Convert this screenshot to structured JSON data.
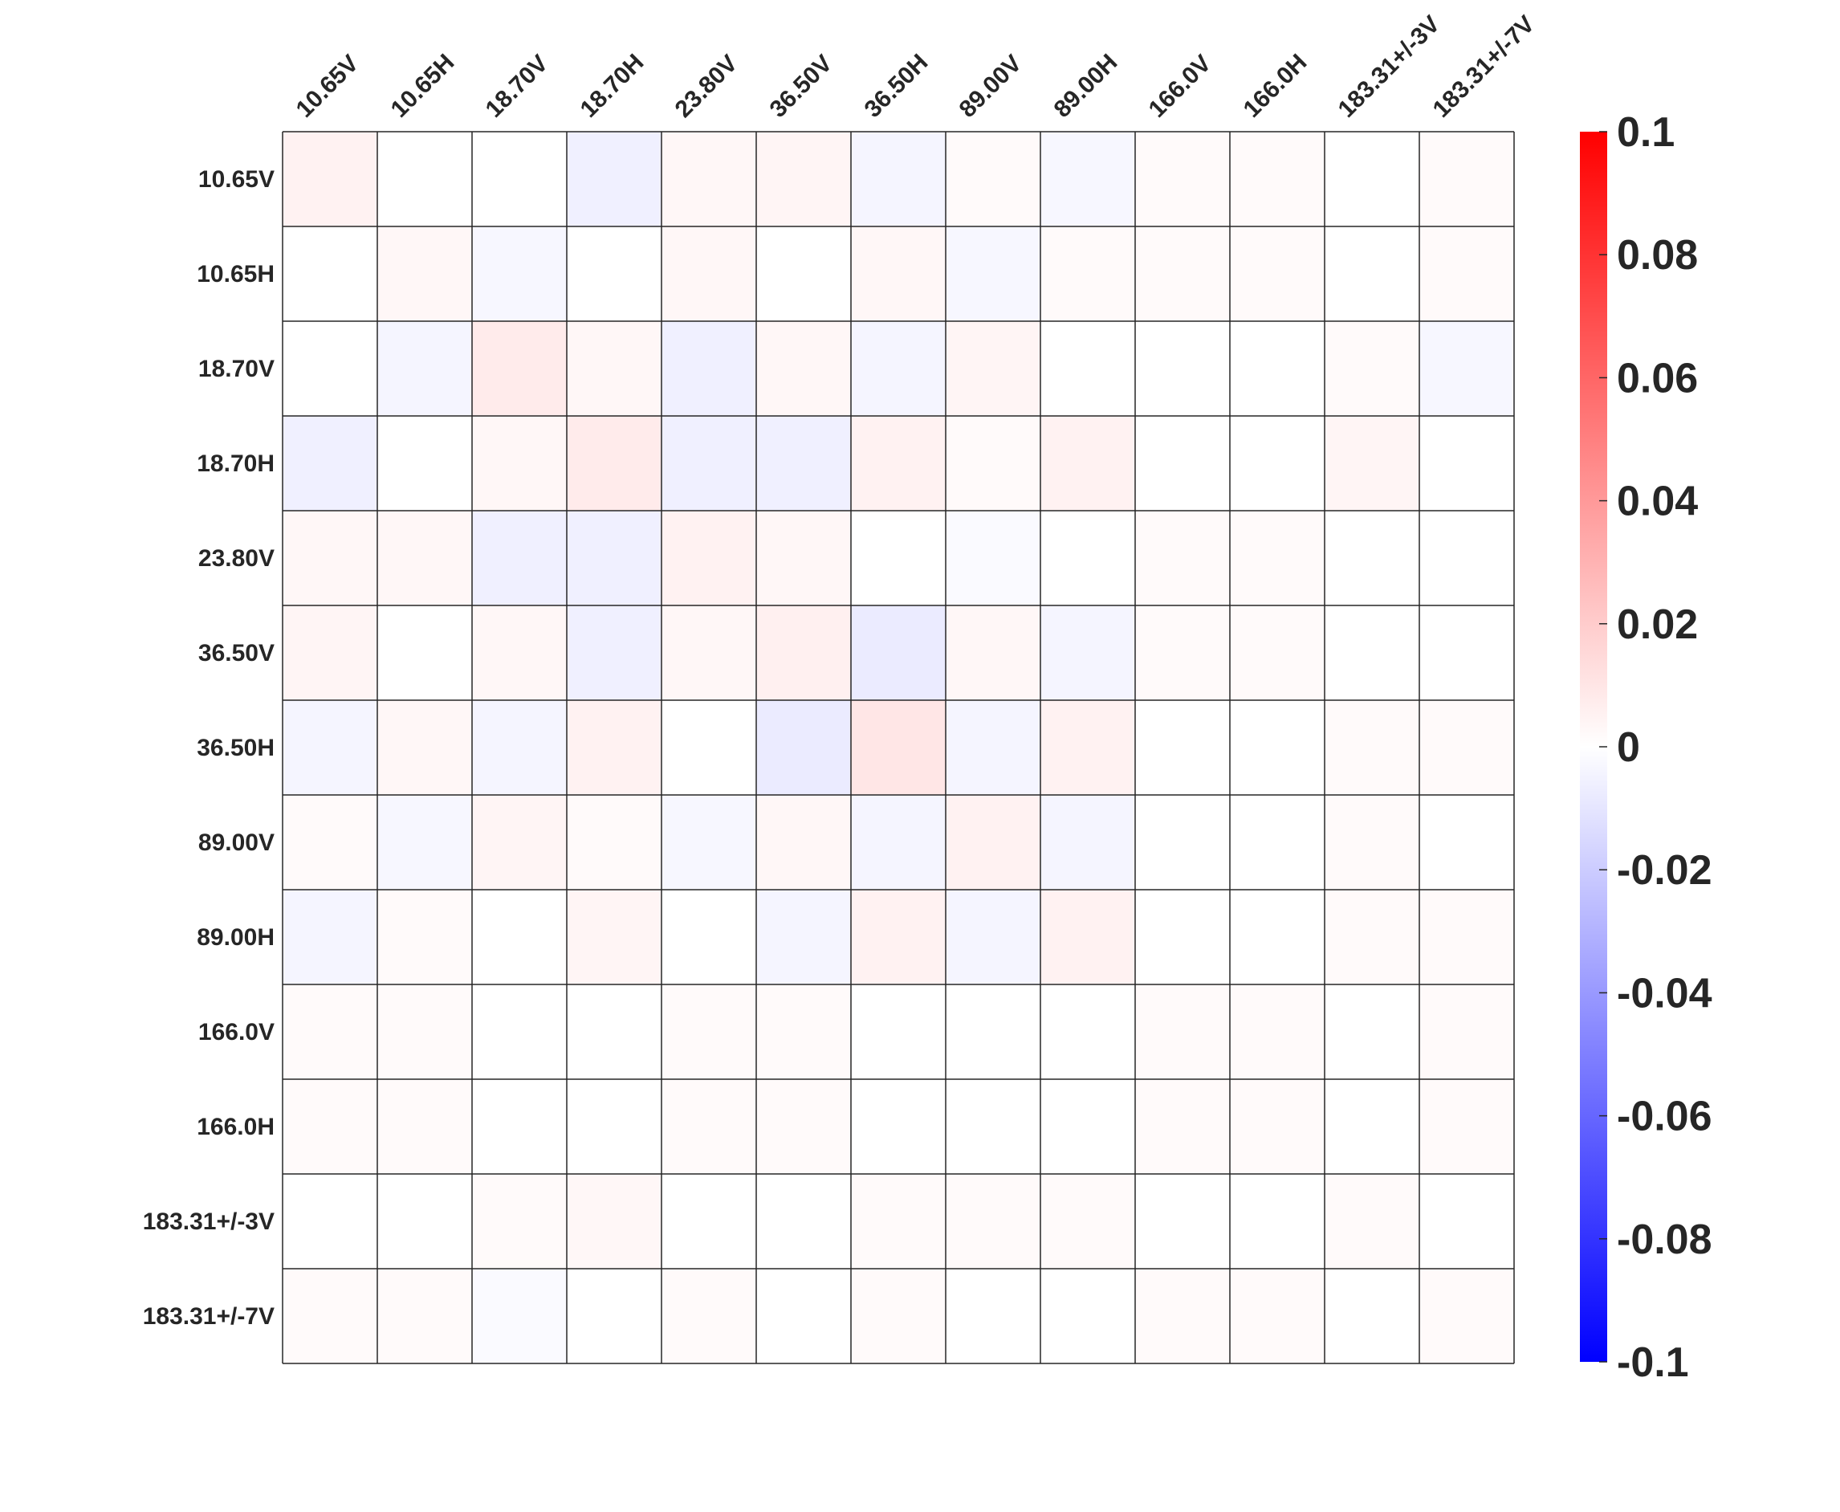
{
  "chart_data": {
    "type": "heatmap",
    "title": "",
    "xlabel": "",
    "ylabel": "",
    "columns": [
      "10.65V",
      "10.65H",
      "18.70V",
      "18.70H",
      "23.80V",
      "36.50V",
      "36.50H",
      "89.00V",
      "89.00H",
      "166.0V",
      "166.0H",
      "183.31+/-3V",
      "183.31+/-7V"
    ],
    "rows": [
      "10.65V",
      "10.65H",
      "18.70V",
      "18.70H",
      "23.80V",
      "36.50V",
      "36.50H",
      "89.00V",
      "89.00H",
      "166.0V",
      "166.0H",
      "183.31+/-3V",
      "183.31+/-7V"
    ],
    "values": [
      [
        0.005,
        0.0,
        0.0,
        -0.006,
        0.003,
        0.004,
        -0.004,
        0.002,
        -0.003,
        0.002,
        0.002,
        0.0,
        0.002
      ],
      [
        0.0,
        0.003,
        -0.003,
        0.0,
        0.003,
        0.0,
        0.003,
        -0.003,
        0.002,
        0.002,
        0.002,
        0.0,
        0.002
      ],
      [
        0.0,
        -0.004,
        0.008,
        0.003,
        -0.006,
        0.003,
        -0.004,
        0.004,
        0.0,
        0.0,
        0.0,
        0.002,
        -0.003
      ],
      [
        -0.006,
        0.0,
        0.003,
        0.008,
        -0.006,
        -0.006,
        0.005,
        0.002,
        0.005,
        0.0,
        0.0,
        0.004,
        0.0
      ],
      [
        0.003,
        0.003,
        -0.006,
        -0.006,
        0.005,
        0.003,
        0.0,
        -0.002,
        0.0,
        0.002,
        0.002,
        0.0,
        0.0
      ],
      [
        0.004,
        0.0,
        0.003,
        -0.006,
        0.003,
        0.006,
        -0.008,
        0.003,
        -0.004,
        0.002,
        0.002,
        0.0,
        0.0
      ],
      [
        -0.004,
        0.003,
        -0.004,
        0.005,
        0.0,
        -0.008,
        0.01,
        -0.004,
        0.005,
        0.0,
        0.0,
        0.002,
        0.002
      ],
      [
        0.002,
        -0.003,
        0.004,
        0.002,
        -0.003,
        0.003,
        -0.004,
        0.005,
        -0.004,
        0.0,
        0.0,
        0.002,
        0.0
      ],
      [
        -0.004,
        0.002,
        0.0,
        0.004,
        0.0,
        -0.004,
        0.005,
        -0.004,
        0.005,
        0.0,
        0.0,
        0.002,
        0.002
      ],
      [
        0.002,
        0.002,
        0.0,
        0.0,
        0.002,
        0.002,
        0.0,
        0.0,
        0.0,
        0.002,
        0.002,
        0.0,
        0.002
      ],
      [
        0.002,
        0.002,
        0.0,
        0.0,
        0.002,
        0.002,
        0.0,
        0.0,
        0.0,
        0.002,
        0.002,
        0.0,
        0.002
      ],
      [
        0.0,
        0.0,
        0.002,
        0.003,
        0.0,
        0.0,
        0.002,
        0.002,
        0.002,
        0.0,
        0.0,
        0.002,
        0.0
      ],
      [
        0.002,
        0.002,
        -0.002,
        0.0,
        0.002,
        0.0,
        0.002,
        0.0,
        0.0,
        0.002,
        0.002,
        0.0,
        0.002
      ]
    ],
    "colorbar": {
      "min": -0.1,
      "max": 0.1,
      "ticks": [
        0.1,
        0.08,
        0.06,
        0.04,
        0.02,
        0,
        -0.02,
        -0.04,
        -0.06,
        -0.08,
        -0.1
      ],
      "tick_labels": [
        "0.1",
        "0.08",
        "0.06",
        "0.04",
        "0.02",
        "0",
        "-0.02",
        "-0.04",
        "-0.06",
        "-0.08",
        "-0.1"
      ],
      "colormap": [
        "#0000ff",
        "#ffffff",
        "#ff0000"
      ]
    },
    "grid": true,
    "legend": "right"
  }
}
